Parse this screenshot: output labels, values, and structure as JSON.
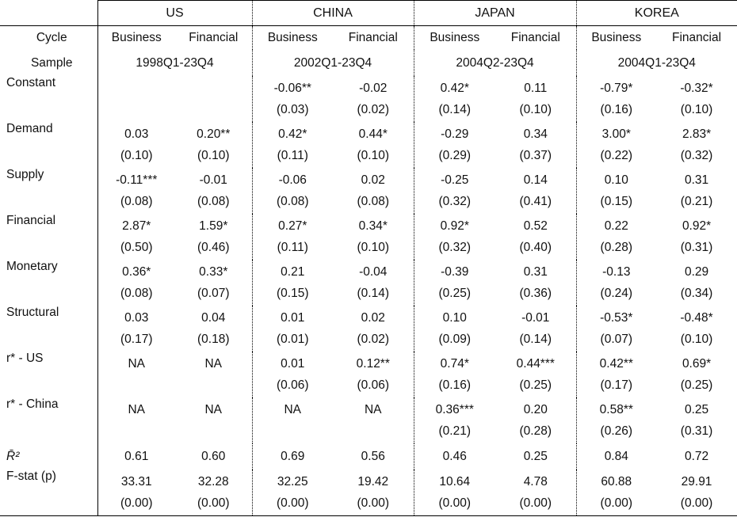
{
  "table": {
    "cycle_label": "Cycle",
    "sample_label": "Sample",
    "subcolumns": [
      "Business",
      "Financial"
    ],
    "countries": [
      {
        "name": "US",
        "sample": "1998Q1-23Q4"
      },
      {
        "name": "CHINA",
        "sample": "2002Q1-23Q4"
      },
      {
        "name": "JAPAN",
        "sample": "2004Q2-23Q4"
      },
      {
        "name": "KOREA",
        "sample": "2004Q1-23Q4"
      }
    ],
    "rows": [
      {
        "label": "Constant",
        "type": "coef",
        "cells": [
          [
            "",
            ""
          ],
          [
            "",
            ""
          ],
          [
            "-0.06**",
            "(0.03)"
          ],
          [
            "-0.02",
            "(0.02)"
          ],
          [
            "0.42*",
            "(0.14)"
          ],
          [
            "0.11",
            "(0.10)"
          ],
          [
            "-0.79*",
            "(0.16)"
          ],
          [
            "-0.32*",
            "(0.10)"
          ]
        ]
      },
      {
        "label": "Demand",
        "type": "coef",
        "cells": [
          [
            "0.03",
            "(0.10)"
          ],
          [
            "0.20**",
            "(0.10)"
          ],
          [
            "0.42*",
            "(0.11)"
          ],
          [
            "0.44*",
            "(0.10)"
          ],
          [
            "-0.29",
            "(0.29)"
          ],
          [
            "0.34",
            "(0.37)"
          ],
          [
            "3.00*",
            "(0.22)"
          ],
          [
            "2.83*",
            "(0.32)"
          ]
        ]
      },
      {
        "label": "Supply",
        "type": "coef",
        "cells": [
          [
            "-0.11***",
            "(0.08)"
          ],
          [
            "-0.01",
            "(0.08)"
          ],
          [
            "-0.06",
            "(0.08)"
          ],
          [
            "0.02",
            "(0.08)"
          ],
          [
            "-0.25",
            "(0.32)"
          ],
          [
            "0.14",
            "(0.41)"
          ],
          [
            "0.10",
            "(0.15)"
          ],
          [
            "0.31",
            "(0.21)"
          ]
        ]
      },
      {
        "label": "Financial",
        "type": "coef",
        "cells": [
          [
            "2.87*",
            "(0.50)"
          ],
          [
            "1.59*",
            "(0.46)"
          ],
          [
            "0.27*",
            "(0.11)"
          ],
          [
            "0.34*",
            "(0.10)"
          ],
          [
            "0.92*",
            "(0.32)"
          ],
          [
            "0.52",
            "(0.40)"
          ],
          [
            "0.22",
            "(0.28)"
          ],
          [
            "0.92*",
            "(0.31)"
          ]
        ]
      },
      {
        "label": "Monetary",
        "type": "coef",
        "cells": [
          [
            "0.36*",
            "(0.08)"
          ],
          [
            "0.33*",
            "(0.07)"
          ],
          [
            "0.21",
            "(0.15)"
          ],
          [
            "-0.04",
            "(0.14)"
          ],
          [
            "-0.39",
            "(0.25)"
          ],
          [
            "0.31",
            "(0.36)"
          ],
          [
            "-0.13",
            "(0.24)"
          ],
          [
            "0.29",
            "(0.34)"
          ]
        ]
      },
      {
        "label": "Structural",
        "type": "coef",
        "cells": [
          [
            "0.03",
            "(0.17)"
          ],
          [
            "0.04",
            "(0.18)"
          ],
          [
            "0.01",
            "(0.01)"
          ],
          [
            "0.02",
            "(0.02)"
          ],
          [
            "0.10",
            "(0.09)"
          ],
          [
            "-0.01",
            "(0.14)"
          ],
          [
            "-0.53*",
            "(0.07)"
          ],
          [
            "-0.48*",
            "(0.10)"
          ]
        ]
      },
      {
        "label": "r* - US",
        "type": "coef",
        "cells": [
          [
            "NA",
            ""
          ],
          [
            "NA",
            ""
          ],
          [
            "0.01",
            "(0.06)"
          ],
          [
            "0.12**",
            "(0.06)"
          ],
          [
            "0.74*",
            "(0.16)"
          ],
          [
            "0.44***",
            "(0.25)"
          ],
          [
            "0.42**",
            "(0.17)"
          ],
          [
            "0.69*",
            "(0.25)"
          ]
        ]
      },
      {
        "label": "r* - China",
        "type": "coef",
        "cells": [
          [
            "NA",
            ""
          ],
          [
            "NA",
            ""
          ],
          [
            "NA",
            ""
          ],
          [
            "NA",
            ""
          ],
          [
            "0.36***",
            "(0.21)"
          ],
          [
            "0.20",
            "(0.28)"
          ],
          [
            "0.58**",
            "(0.26)"
          ],
          [
            "0.25",
            "(0.31)"
          ]
        ]
      },
      {
        "label": "R̄²",
        "type": "single",
        "math": true,
        "cells": [
          "0.61",
          "0.60",
          "0.69",
          "0.56",
          "0.46",
          "0.25",
          "0.84",
          "0.72"
        ]
      },
      {
        "label": "F-stat (p)",
        "type": "coef",
        "cells": [
          [
            "33.31",
            "(0.00)"
          ],
          [
            "32.28",
            "(0.00)"
          ],
          [
            "32.25",
            "(0.00)"
          ],
          [
            "19.42",
            "(0.00)"
          ],
          [
            "10.64",
            "(0.00)"
          ],
          [
            "4.78",
            "(0.00)"
          ],
          [
            "60.88",
            "(0.00)"
          ],
          [
            "29.91",
            "(0.00)"
          ]
        ]
      }
    ]
  }
}
